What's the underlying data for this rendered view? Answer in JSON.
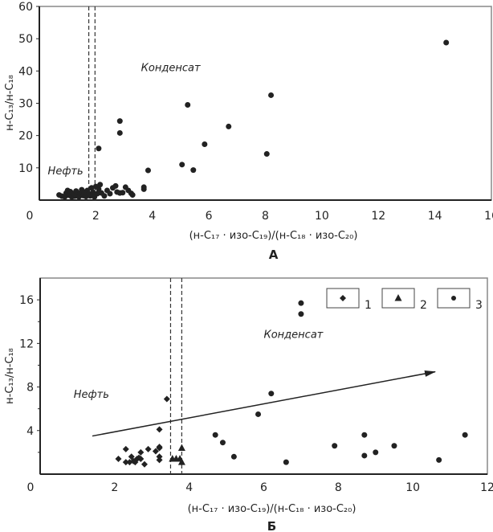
{
  "chart_data": [
    {
      "type": "scatter",
      "panel_label": "А",
      "xlabel": "(н-C₁₇ · изо-C₁₉)/(н-C₁₈ · изо-C₂₀)",
      "ylabel": "н-C₁₃/н-C₁₈",
      "xlim": [
        0,
        16
      ],
      "ylim": [
        0,
        60
      ],
      "xticks": [
        0,
        2,
        4,
        6,
        8,
        10,
        12,
        14,
        16
      ],
      "yticks": [
        10,
        20,
        30,
        40,
        50,
        60
      ],
      "y_zero_label": "0",
      "grid": false,
      "threshold_lines_x": [
        1.75,
        1.97
      ],
      "annotations": [
        {
          "text": "Конденсат",
          "x": 3.6,
          "y": 40
        },
        {
          "text": "Нефть",
          "x": 0.3,
          "y": 8
        }
      ],
      "series": [
        {
          "name": "samples",
          "marker": "circle",
          "points": [
            [
              2.1,
              16
            ],
            [
              2.85,
              24.5
            ],
            [
              2.85,
              20.8
            ],
            [
              3.85,
              9.2
            ],
            [
              5.05,
              11
            ],
            [
              5.25,
              29.5
            ],
            [
              5.45,
              9.3
            ],
            [
              5.85,
              17.3
            ],
            [
              6.7,
              22.8
            ],
            [
              8.05,
              14.3
            ],
            [
              8.2,
              32.5
            ],
            [
              14.4,
              48.8
            ],
            [
              0.7,
              1.6
            ],
            [
              0.8,
              1.2
            ],
            [
              0.9,
              1.0
            ],
            [
              0.95,
              2.2
            ],
            [
              1.0,
              3.0
            ],
            [
              1.05,
              1.5
            ],
            [
              1.1,
              2.6
            ],
            [
              1.15,
              1.0
            ],
            [
              1.2,
              2.0
            ],
            [
              1.25,
              1.2
            ],
            [
              1.3,
              2.8
            ],
            [
              1.35,
              1.6
            ],
            [
              1.4,
              1.0
            ],
            [
              1.45,
              2.2
            ],
            [
              1.5,
              3.2
            ],
            [
              1.55,
              1.4
            ],
            [
              1.6,
              2.5
            ],
            [
              1.65,
              1.1
            ],
            [
              1.7,
              3.0
            ],
            [
              1.75,
              2.0
            ],
            [
              1.8,
              1.3
            ],
            [
              1.85,
              3.8
            ],
            [
              1.9,
              2.4
            ],
            [
              1.95,
              1.0
            ],
            [
              2.0,
              4.2
            ],
            [
              2.05,
              2.0
            ],
            [
              2.1,
              3.4
            ],
            [
              2.15,
              4.8
            ],
            [
              2.2,
              2.2
            ],
            [
              2.3,
              1.3
            ],
            [
              2.4,
              3.0
            ],
            [
              2.5,
              2.0
            ],
            [
              2.6,
              3.8
            ],
            [
              2.7,
              4.4
            ],
            [
              2.75,
              2.5
            ],
            [
              2.85,
              2.2
            ],
            [
              2.95,
              2.3
            ],
            [
              3.05,
              4.0
            ],
            [
              3.15,
              3.0
            ],
            [
              3.25,
              2.1
            ],
            [
              3.3,
              1.6
            ],
            [
              3.7,
              3.4
            ],
            [
              3.7,
              4.0
            ]
          ]
        }
      ]
    },
    {
      "type": "scatter",
      "panel_label": "Б",
      "xlabel": "(н-C₁₇ · изо-C₁₉)/(н-C₁₈ · изо-C₂₀)",
      "ylabel": "н-C₁₃/н-C₁₈",
      "xlim": [
        0,
        12
      ],
      "ylim": [
        0,
        18
      ],
      "xticks": [
        0,
        2,
        4,
        6,
        8,
        10,
        12
      ],
      "yticks": [
        4,
        8,
        12,
        16
      ],
      "grid": false,
      "legend": {
        "placement": "top-right",
        "entries": [
          "1",
          "2",
          "3"
        ]
      },
      "threshold_lines_x": [
        3.5,
        3.8
      ],
      "trend_arrow": {
        "from": [
          1.4,
          3.5
        ],
        "to": [
          10.6,
          9.4
        ]
      },
      "annotations": [
        {
          "text": "Конденсат",
          "x": 6.0,
          "y": 12.5
        },
        {
          "text": "Нефть",
          "x": 0.9,
          "y": 7.0
        }
      ],
      "series": [
        {
          "name": "1",
          "marker": "diamond",
          "points": [
            [
              2.1,
              1.4
            ],
            [
              2.3,
              2.3
            ],
            [
              2.3,
              1.1
            ],
            [
              2.4,
              1.1
            ],
            [
              2.45,
              1.6
            ],
            [
              2.5,
              1.2
            ],
            [
              2.55,
              1.1
            ],
            [
              2.6,
              1.4
            ],
            [
              2.65,
              1.5
            ],
            [
              2.7,
              1.4
            ],
            [
              2.7,
              2.0
            ],
            [
              2.8,
              0.9
            ],
            [
              2.9,
              2.3
            ],
            [
              3.1,
              2.1
            ],
            [
              3.2,
              2.4
            ],
            [
              3.2,
              2.5
            ],
            [
              3.2,
              1.6
            ],
            [
              3.2,
              1.3
            ],
            [
              3.2,
              4.1
            ],
            [
              3.4,
              6.9
            ]
          ]
        },
        {
          "name": "2",
          "marker": "triangle",
          "points": [
            [
              3.55,
              1.4
            ],
            [
              3.65,
              1.4
            ],
            [
              3.75,
              1.4
            ],
            [
              3.8,
              2.4
            ],
            [
              3.8,
              1.1
            ]
          ]
        },
        {
          "name": "3",
          "marker": "circle",
          "points": [
            [
              4.7,
              3.6
            ],
            [
              4.9,
              2.9
            ],
            [
              5.2,
              1.6
            ],
            [
              5.85,
              5.5
            ],
            [
              6.2,
              7.4
            ],
            [
              6.6,
              1.1
            ],
            [
              7.0,
              15.7
            ],
            [
              7.0,
              14.7
            ],
            [
              7.9,
              2.6
            ],
            [
              8.7,
              3.6
            ],
            [
              8.7,
              1.7
            ],
            [
              9.0,
              2.0
            ],
            [
              9.5,
              2.6
            ],
            [
              10.7,
              1.3
            ],
            [
              11.4,
              3.6
            ]
          ]
        }
      ]
    }
  ]
}
